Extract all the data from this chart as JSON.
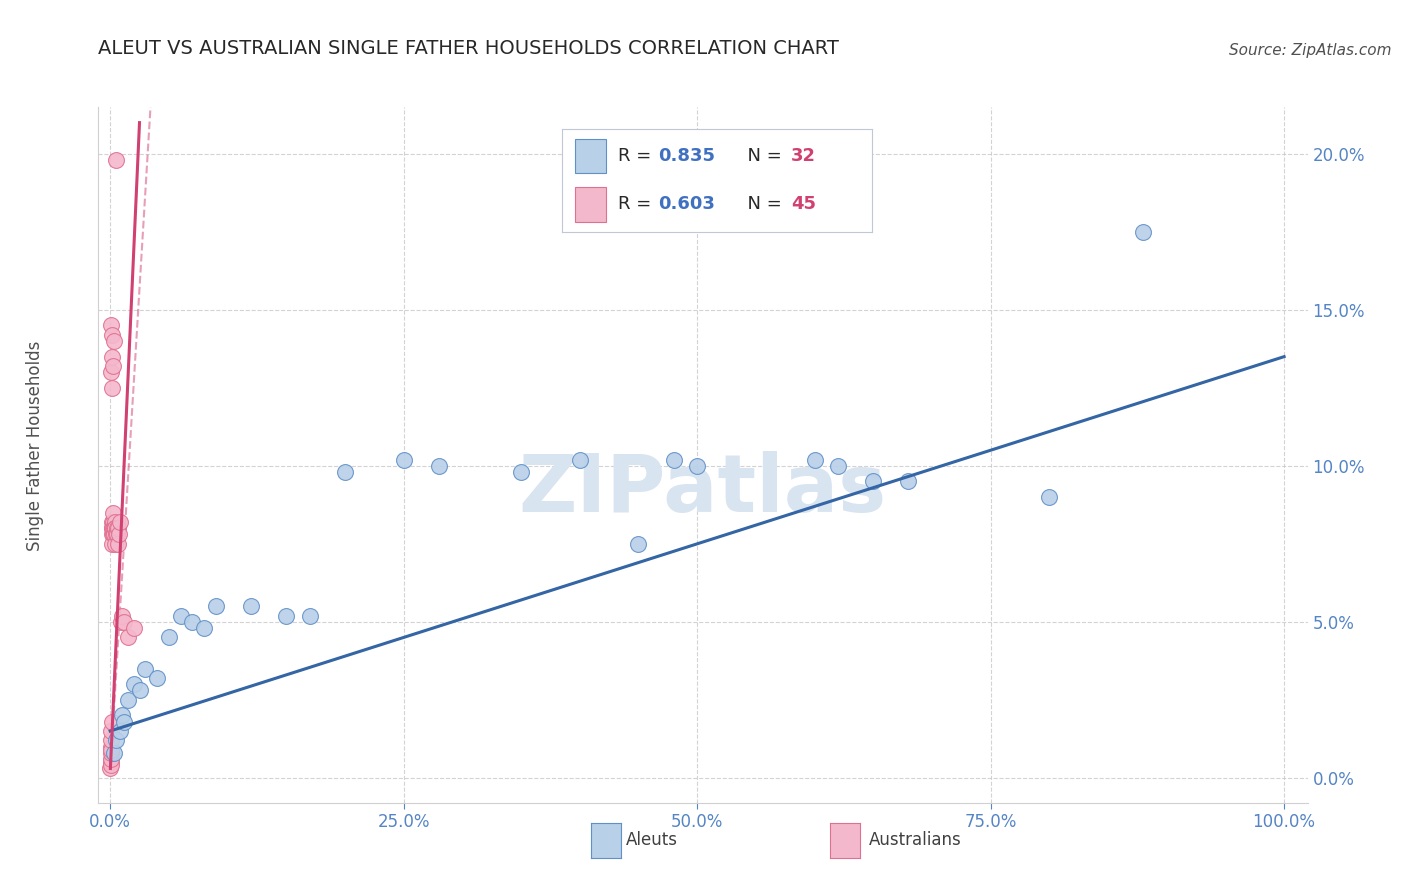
{
  "title": "ALEUT VS AUSTRALIAN SINGLE FATHER HOUSEHOLDS CORRELATION CHART",
  "source": "Source: ZipAtlas.com",
  "ylabel": "Single Father Households",
  "xlim": [
    -1,
    102
  ],
  "ylim": [
    -0.8,
    21.5
  ],
  "xticks": [
    0,
    25,
    50,
    75,
    100
  ],
  "xtick_labels": [
    "0.0%",
    "25.0%",
    "50.0%",
    "75.0%",
    "100.0%"
  ],
  "ytick_labels": [
    "0.0%",
    "5.0%",
    "10.0%",
    "15.0%",
    "20.0%"
  ],
  "yticks": [
    0,
    5,
    10,
    15,
    20
  ],
  "aleut_R": "0.835",
  "aleut_N": "32",
  "australian_R": "0.603",
  "australian_N": "45",
  "aleut_color": "#b8d0e8",
  "aleut_edge_color": "#6090c8",
  "aleut_line_color": "#3465a4",
  "australian_color": "#f4b8cc",
  "australian_edge_color": "#e07090",
  "australian_line_color": "#d04070",
  "background_color": "#ffffff",
  "grid_color": "#c8c8c8",
  "title_color": "#282828",
  "axis_tick_color": "#5585c5",
  "legend_text_dark": "#282828",
  "legend_R_color": "#4070c0",
  "legend_N_color": "#d04070",
  "watermark_color": "#d8e4f0",
  "aleut_points": [
    [
      0.3,
      0.8
    ],
    [
      0.5,
      1.2
    ],
    [
      0.8,
      1.5
    ],
    [
      1.0,
      2.0
    ],
    [
      1.2,
      1.8
    ],
    [
      1.5,
      2.5
    ],
    [
      2.0,
      3.0
    ],
    [
      2.5,
      2.8
    ],
    [
      3.0,
      3.5
    ],
    [
      4.0,
      3.2
    ],
    [
      5.0,
      4.5
    ],
    [
      6.0,
      5.2
    ],
    [
      7.0,
      5.0
    ],
    [
      8.0,
      4.8
    ],
    [
      9.0,
      5.5
    ],
    [
      12.0,
      5.5
    ],
    [
      15.0,
      5.2
    ],
    [
      17.0,
      5.2
    ],
    [
      20.0,
      9.8
    ],
    [
      25.0,
      10.2
    ],
    [
      28.0,
      10.0
    ],
    [
      35.0,
      9.8
    ],
    [
      40.0,
      10.2
    ],
    [
      45.0,
      7.5
    ],
    [
      48.0,
      10.2
    ],
    [
      50.0,
      10.0
    ],
    [
      60.0,
      10.2
    ],
    [
      62.0,
      10.0
    ],
    [
      65.0,
      9.5
    ],
    [
      68.0,
      9.5
    ],
    [
      80.0,
      9.0
    ],
    [
      88.0,
      17.5
    ]
  ],
  "australian_points": [
    [
      0.02,
      0.3
    ],
    [
      0.03,
      0.5
    ],
    [
      0.04,
      0.4
    ],
    [
      0.05,
      0.6
    ],
    [
      0.06,
      0.8
    ],
    [
      0.07,
      1.0
    ],
    [
      0.08,
      0.9
    ],
    [
      0.08,
      14.5
    ],
    [
      0.09,
      1.2
    ],
    [
      0.1,
      1.5
    ],
    [
      0.1,
      13.0
    ],
    [
      0.12,
      1.8
    ],
    [
      0.12,
      12.5
    ],
    [
      0.13,
      7.8
    ],
    [
      0.14,
      8.0
    ],
    [
      0.15,
      8.2
    ],
    [
      0.15,
      7.5
    ],
    [
      0.16,
      8.0
    ],
    [
      0.17,
      14.2
    ],
    [
      0.18,
      13.5
    ],
    [
      0.2,
      8.2
    ],
    [
      0.22,
      13.2
    ],
    [
      0.23,
      7.8
    ],
    [
      0.25,
      8.0
    ],
    [
      0.28,
      8.5
    ],
    [
      0.3,
      8.0
    ],
    [
      0.32,
      7.8
    ],
    [
      0.35,
      14.0
    ],
    [
      0.38,
      8.2
    ],
    [
      0.4,
      8.0
    ],
    [
      0.42,
      7.5
    ],
    [
      0.45,
      8.0
    ],
    [
      0.48,
      7.8
    ],
    [
      0.5,
      19.8
    ],
    [
      0.55,
      8.0
    ],
    [
      0.6,
      7.8
    ],
    [
      0.65,
      7.5
    ],
    [
      0.7,
      8.0
    ],
    [
      0.75,
      7.8
    ],
    [
      0.8,
      8.2
    ],
    [
      0.9,
      5.0
    ],
    [
      1.0,
      5.2
    ],
    [
      1.2,
      5.0
    ],
    [
      1.5,
      4.5
    ],
    [
      2.0,
      4.8
    ]
  ],
  "aleut_line": [
    0,
    100,
    1.5,
    13.5
  ],
  "australian_line_solid": [
    0.02,
    2.5,
    0.3,
    21.0
  ],
  "australian_line_dashed": [
    0.02,
    4.0,
    0.3,
    25.0
  ]
}
